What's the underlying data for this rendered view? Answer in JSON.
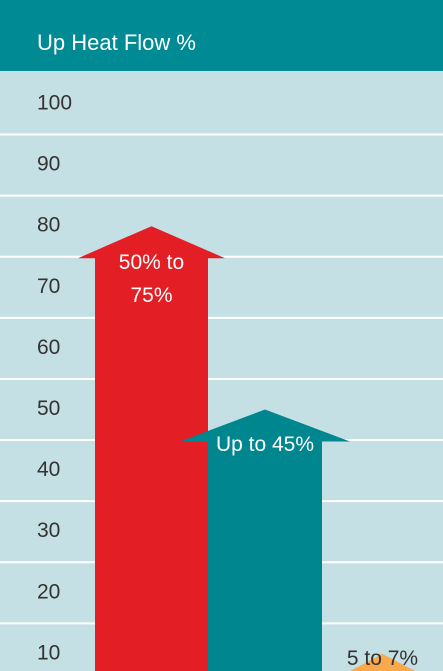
{
  "chart_data": {
    "type": "arrow",
    "title": "Up Heat Flow %",
    "yticks": [
      100,
      90,
      80,
      70,
      60,
      50,
      40,
      30,
      20,
      10
    ],
    "ylim": [
      0,
      100
    ],
    "values": [
      80,
      50,
      10
    ],
    "colors": [
      "#e31e24",
      "#00868f",
      "#f9a94b"
    ],
    "annotations": [
      "50% to 75%",
      "Up to 45%",
      "5 to 7%"
    ]
  }
}
